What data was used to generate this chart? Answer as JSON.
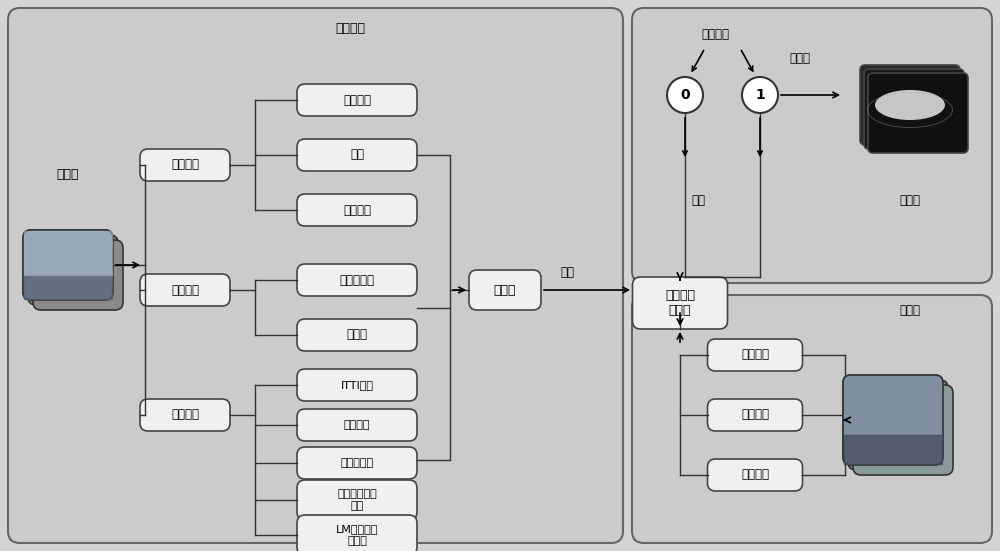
{
  "bg_color": "#d4d4d4",
  "box_bg": "#f0f0f0",
  "box_border": "#444444",
  "panel_bg": "#cccccc",
  "panel_border": "#555555",
  "fig_width": 10.0,
  "fig_height": 5.51,
  "sample_label": "样本集",
  "feature_extract_label": "特征提取",
  "feature_set_label": "特征集",
  "train_label": "训练",
  "test_label": "测试",
  "dbm_label": "深度玻尔\n兹曼机",
  "output_node_label": "输出节点",
  "prob_label": "概率值",
  "saliency_label": "显著图",
  "test_set_label": "测试集",
  "high_feat_label": "高层特征",
  "mid_feat_label": "中层特征",
  "low_feat_label": "底层特征",
  "feat_boxes_high": [
    "目标银行",
    "人脸",
    "中心偏置"
  ],
  "feat_boxes_mid": [
    "水平线检测",
    "显著图"
  ],
  "feat_boxes_low": [
    "ITTI特征",
    "颜色特征",
    "紧密度特征",
    "可控金字塔子\n频带",
    "LM滤波器最\n大响应"
  ],
  "test_feat_labels": [
    "高层特征",
    "中层特征",
    "底层特征"
  ]
}
